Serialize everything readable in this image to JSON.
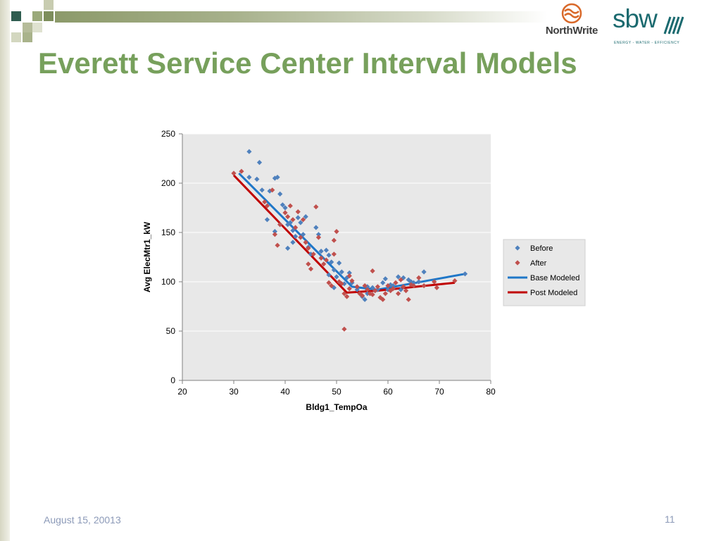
{
  "slide": {
    "title": "Everett Service Center Interval Models",
    "footer_date": "August 15, 20013",
    "page_number": "11"
  },
  "logos": {
    "northwrite": "NorthWrite",
    "sbw": "sbw",
    "sbw_tagline": "ENERGY - WATER - EFFICIENCY"
  },
  "colors": {
    "title": "#77a05c",
    "before": "#4f81bd",
    "after": "#c0504d",
    "base_modeled": "#1f77c8",
    "post_modeled": "#c00000",
    "plot_bg": "#e8e8e8"
  },
  "chart_data": {
    "type": "scatter",
    "xlabel": "Bldg1_TempOa",
    "ylabel": "Avg ElecMtr1_kW",
    "xlim": [
      20,
      80
    ],
    "ylim": [
      0,
      250
    ],
    "x_ticks": [
      "20",
      "30",
      "40",
      "50",
      "60",
      "70",
      "80"
    ],
    "y_ticks": [
      "0",
      "50",
      "100",
      "150",
      "200",
      "250"
    ],
    "grid": "horizontal",
    "legend_position": "right",
    "series": [
      {
        "name": "Before",
        "kind": "points",
        "marker": "diamond",
        "points": [
          [
            33,
            232
          ],
          [
            35,
            221
          ],
          [
            33,
            206
          ],
          [
            34.5,
            204
          ],
          [
            38,
            205
          ],
          [
            38.5,
            206
          ],
          [
            37,
            192
          ],
          [
            35.5,
            193
          ],
          [
            39,
            189
          ],
          [
            39.5,
            178
          ],
          [
            40,
            175
          ],
          [
            36.5,
            163
          ],
          [
            38,
            151
          ],
          [
            39,
            158
          ],
          [
            40.5,
            158
          ],
          [
            41,
            160
          ],
          [
            41.5,
            152
          ],
          [
            42,
            146
          ],
          [
            40.5,
            134
          ],
          [
            41.5,
            140
          ],
          [
            42.5,
            165
          ],
          [
            43,
            160
          ],
          [
            44,
            166
          ],
          [
            43.5,
            148
          ],
          [
            44.5,
            135
          ],
          [
            45,
            128
          ],
          [
            46,
            155
          ],
          [
            46.5,
            148
          ],
          [
            47,
            131
          ],
          [
            48,
            132
          ],
          [
            48.5,
            127
          ],
          [
            49,
            120
          ],
          [
            49.5,
            112
          ],
          [
            50.5,
            119
          ],
          [
            51,
            110
          ],
          [
            50,
            105
          ],
          [
            52,
            104
          ],
          [
            52.5,
            109
          ],
          [
            48.5,
            107
          ],
          [
            49.5,
            94
          ],
          [
            51.5,
            98
          ],
          [
            53,
            99
          ],
          [
            54,
            92
          ],
          [
            55,
            85
          ],
          [
            56,
            88
          ],
          [
            56,
            95
          ],
          [
            57,
            94
          ],
          [
            58,
            92
          ],
          [
            59,
            99
          ],
          [
            59.5,
            103
          ],
          [
            60,
            92
          ],
          [
            61,
            96
          ],
          [
            62,
            105
          ],
          [
            63,
            104
          ],
          [
            64,
            102
          ],
          [
            65,
            99
          ],
          [
            66,
            100
          ],
          [
            67,
            110
          ],
          [
            75,
            108
          ],
          [
            55.5,
            82
          ],
          [
            57.5,
            91
          ],
          [
            60.5,
            97
          ],
          [
            62.5,
            92
          ],
          [
            64.5,
            100
          ]
        ]
      },
      {
        "name": "After",
        "kind": "points",
        "marker": "diamond",
        "points": [
          [
            30,
            210
          ],
          [
            31.5,
            212
          ],
          [
            36,
            181
          ],
          [
            36.5,
            177
          ],
          [
            37.5,
            193
          ],
          [
            38,
            148
          ],
          [
            38.5,
            137
          ],
          [
            39,
            158
          ],
          [
            40,
            170
          ],
          [
            40.5,
            166
          ],
          [
            41,
            177
          ],
          [
            41.5,
            163
          ],
          [
            42,
            155
          ],
          [
            42.5,
            171
          ],
          [
            43,
            145
          ],
          [
            43.5,
            163
          ],
          [
            44,
            140
          ],
          [
            44.5,
            134
          ],
          [
            44.5,
            118
          ],
          [
            45,
            113
          ],
          [
            45.5,
            128
          ],
          [
            46,
            176
          ],
          [
            46.5,
            145
          ],
          [
            47,
            124
          ],
          [
            47.5,
            118
          ],
          [
            48,
            122
          ],
          [
            48.5,
            99
          ],
          [
            49,
            96
          ],
          [
            49.5,
            128
          ],
          [
            49.5,
            142
          ],
          [
            50,
            151
          ],
          [
            50.5,
            100
          ],
          [
            51,
            98
          ],
          [
            51.5,
            88
          ],
          [
            52,
            85
          ],
          [
            52.5,
            93
          ],
          [
            53,
            101
          ],
          [
            51.5,
            52
          ],
          [
            54,
            95
          ],
          [
            54.5,
            88
          ],
          [
            55,
            86
          ],
          [
            55.5,
            96
          ],
          [
            56,
            92
          ],
          [
            56.5,
            88
          ],
          [
            57,
            111
          ],
          [
            57.5,
            91
          ],
          [
            58,
            95
          ],
          [
            58.5,
            84
          ],
          [
            59,
            82
          ],
          [
            59.5,
            88
          ],
          [
            60,
            96
          ],
          [
            60.5,
            91
          ],
          [
            61,
            93
          ],
          [
            61.5,
            99
          ],
          [
            62,
            88
          ],
          [
            62.5,
            102
          ],
          [
            63,
            95
          ],
          [
            63.5,
            91
          ],
          [
            64,
            82
          ],
          [
            64.5,
            97
          ],
          [
            65,
            96
          ],
          [
            66,
            104
          ],
          [
            67,
            96
          ],
          [
            69,
            100
          ],
          [
            69.5,
            94
          ],
          [
            73,
            101
          ],
          [
            52.5,
            106
          ],
          [
            57,
            87
          ]
        ]
      },
      {
        "name": "Base Modeled",
        "kind": "line",
        "points": [
          [
            31,
            210
          ],
          [
            53,
            95
          ],
          [
            58,
            92
          ],
          [
            75,
            108
          ]
        ]
      },
      {
        "name": "Post Modeled",
        "kind": "line",
        "points": [
          [
            30,
            208
          ],
          [
            52,
            89
          ],
          [
            58,
            91
          ],
          [
            73,
            99
          ]
        ]
      }
    ]
  }
}
